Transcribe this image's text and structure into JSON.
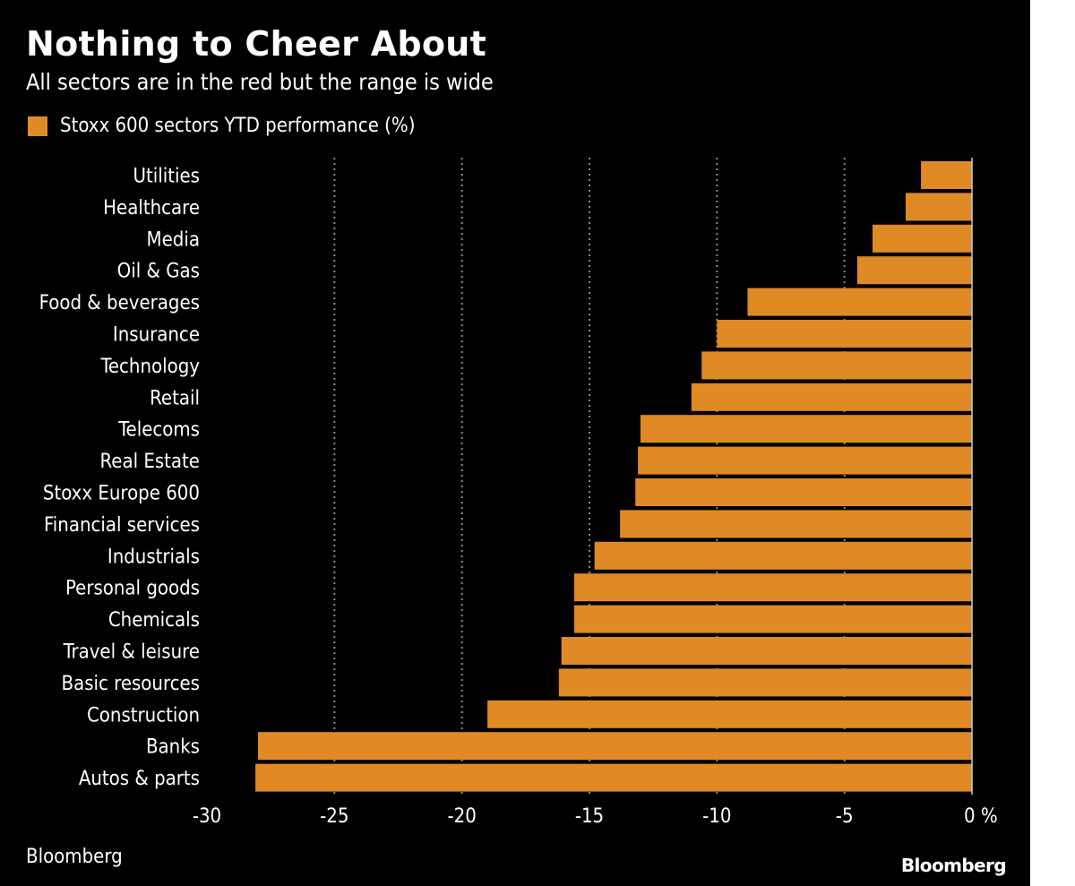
{
  "chart_data": {
    "type": "bar",
    "orientation": "horizontal",
    "title": "Nothing to Cheer About",
    "subtitle": "All sectors are in the red but the range is wide",
    "legend": [
      "Stoxx 600 sectors YTD performance (%)"
    ],
    "categories": [
      "Utilities",
      "Healthcare",
      "Media",
      "Oil & Gas",
      "Food & beverages",
      "Insurance",
      "Technology",
      "Retail",
      "Telecoms",
      "Real Estate",
      "Stoxx Europe 600",
      "Financial services",
      "Industrials",
      "Personal goods",
      "Chemicals",
      "Travel & leisure",
      "Basic resources",
      "Construction",
      "Banks",
      "Autos & parts"
    ],
    "values": [
      -2.0,
      -2.6,
      -3.9,
      -4.5,
      -8.8,
      -10.0,
      -10.6,
      -11.0,
      -13.0,
      -13.1,
      -13.2,
      -13.8,
      -14.8,
      -15.6,
      -15.6,
      -16.1,
      -16.2,
      -19.0,
      -28.0,
      -28.1
    ],
    "xlim": [
      -30,
      0
    ],
    "xticks": [
      -30,
      -25,
      -20,
      -15,
      -10,
      -5,
      0
    ],
    "xtick_labels": [
      "-30",
      "-25",
      "-20",
      "-15",
      "-10",
      "-5",
      "0 %"
    ],
    "xlabel": "",
    "ylabel": "",
    "grid": true,
    "source": "Bloomberg",
    "brand": "Bloomberg",
    "colors": {
      "background": "#000000",
      "bar": "#e08a25",
      "text": "#ffffff",
      "grid": "#8a8a8a",
      "axis": "#cccccc"
    }
  }
}
